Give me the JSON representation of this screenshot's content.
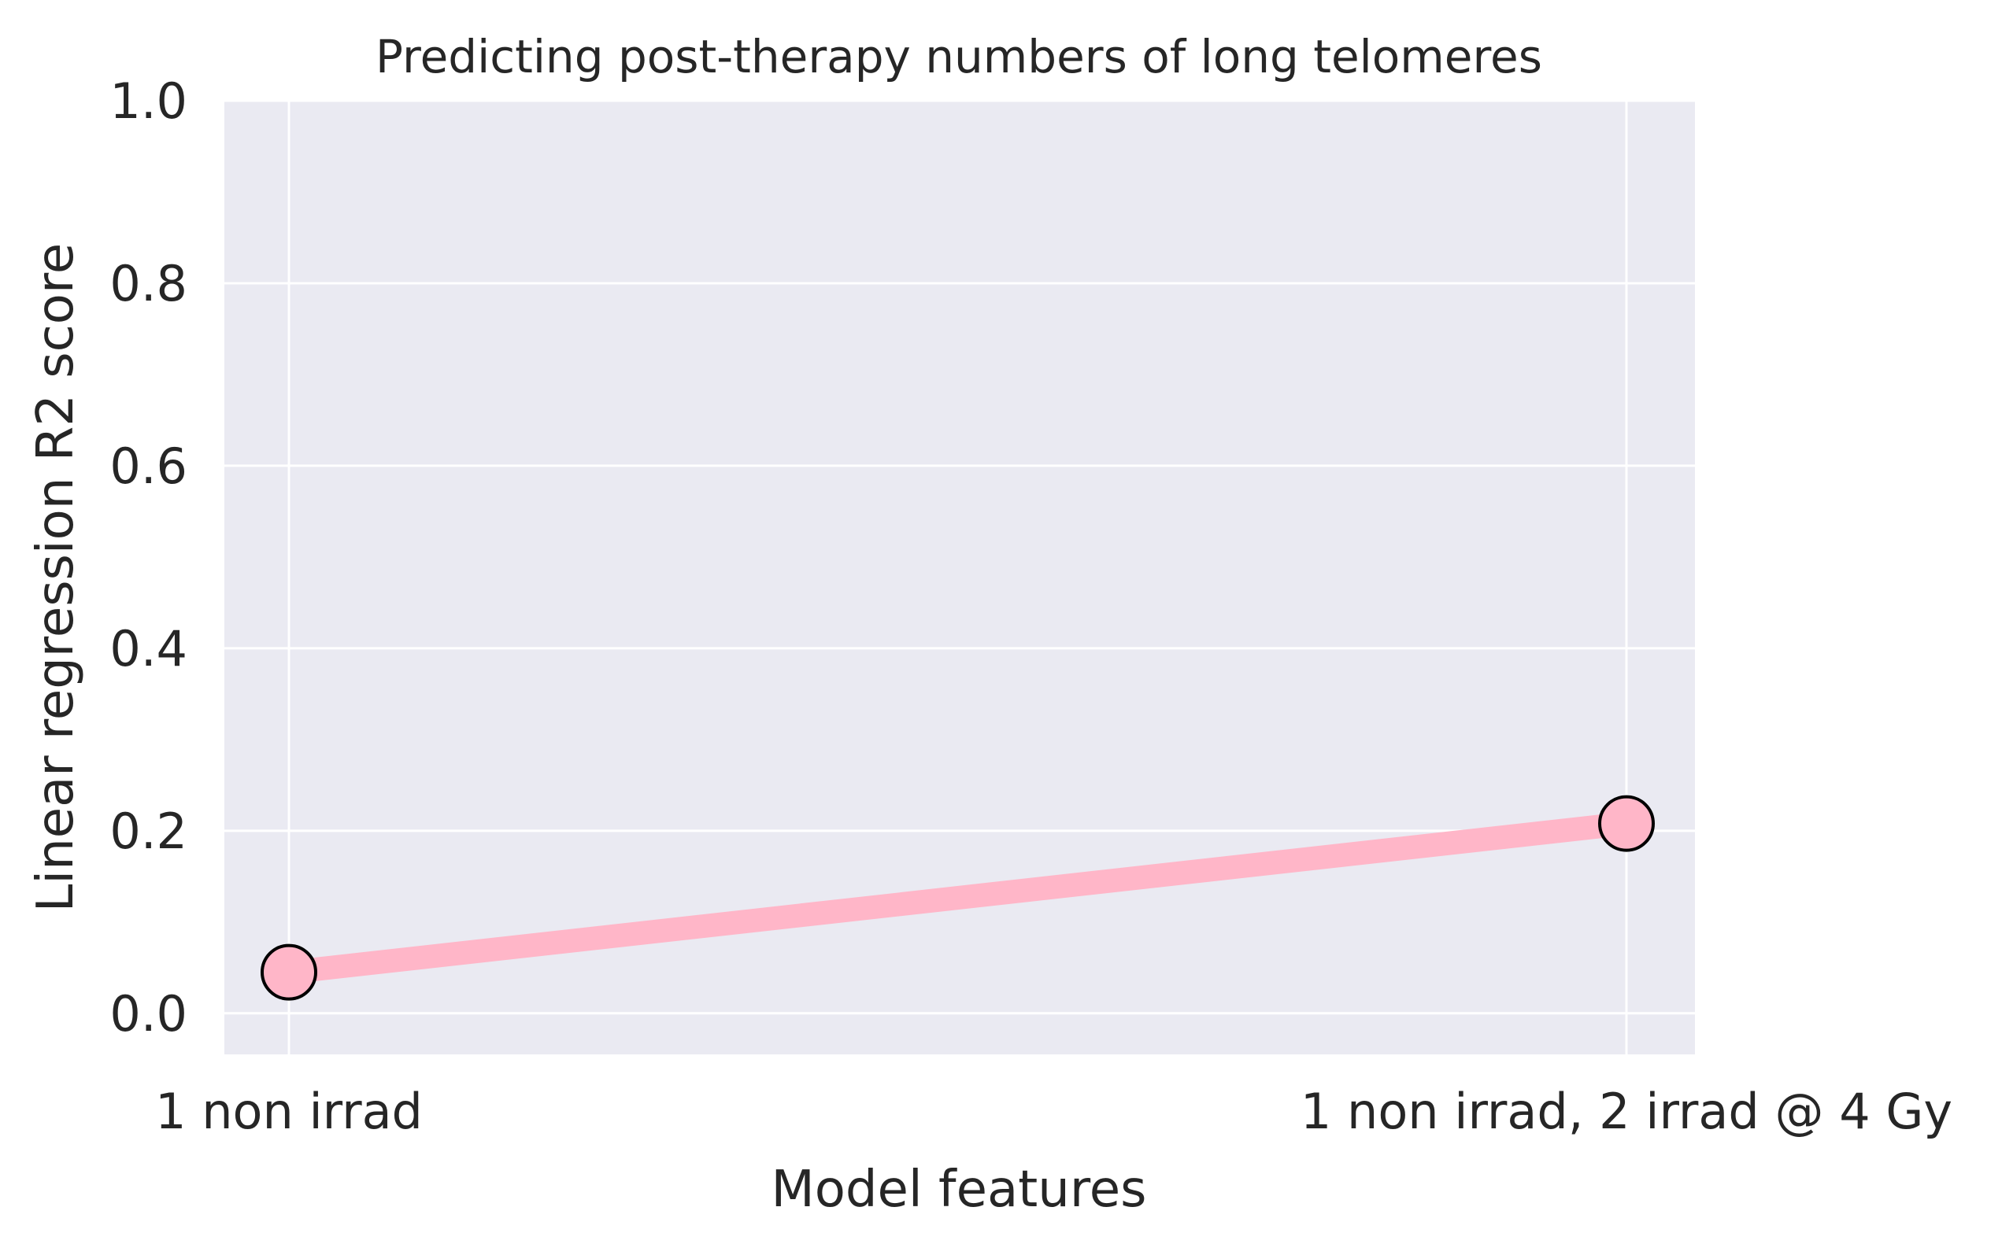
{
  "chart_data": {
    "type": "line",
    "title": "Predicting post-therapy numbers of long telomeres",
    "xlabel": "Model features",
    "ylabel": "Linear regression R2 score",
    "categories": [
      "1 non irrad",
      "1 non irrad, 2 irrad @ 4 Gy"
    ],
    "series": [
      {
        "values": [
          0.045,
          0.208
        ]
      }
    ],
    "ylim": [
      -0.045,
      1.0
    ],
    "yticks": [
      "0.0",
      "0.2",
      "0.4",
      "0.6",
      "0.8",
      "1.0"
    ],
    "ytick_values": [
      0.0,
      0.2,
      0.4,
      0.6,
      0.8,
      1.0
    ],
    "grid": true,
    "legend": "none",
    "colors": {
      "background": "#eaeaf2",
      "grid": "#ffffff",
      "line": "#ffb6c8",
      "marker_fill": "#ffb6c8",
      "marker_edge": "#000000"
    }
  }
}
